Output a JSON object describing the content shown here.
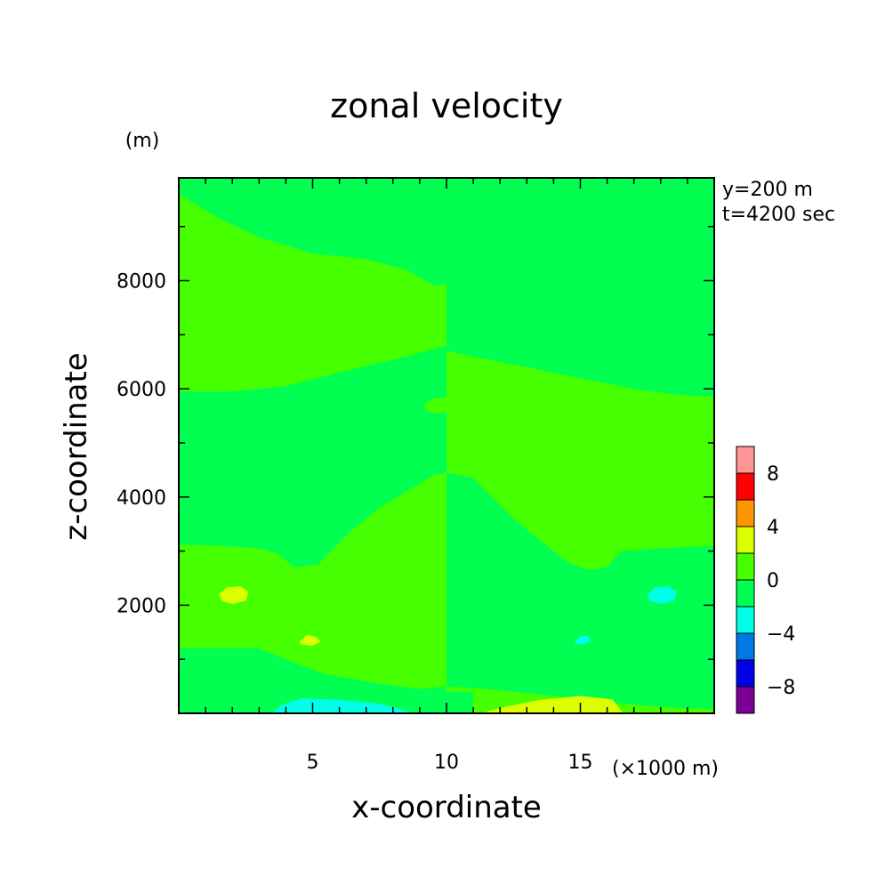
{
  "chart_data": {
    "type": "heatmap",
    "title": "zonal velocity",
    "xlabel": "x-coordinate",
    "ylabel": "z-coordinate",
    "x_unit": "(×1000 m)",
    "y_unit": "(m)",
    "annotations": [
      "y=200 m",
      "t=4200 sec"
    ],
    "xlim": [
      0,
      20
    ],
    "ylim": [
      0,
      9900
    ],
    "x_ticks": [
      5,
      10,
      15
    ],
    "y_ticks": [
      2000,
      4000,
      6000,
      8000
    ],
    "colorbar": {
      "levels": [
        -10,
        -8,
        -6,
        -4,
        -2,
        0,
        2,
        4,
        6,
        8,
        10
      ],
      "tick_labels": [
        -8,
        -4,
        0,
        4,
        8
      ],
      "colors": [
        "#7a0096",
        "#0000e6",
        "#0078e6",
        "#00ffe6",
        "#00ff50",
        "#46ff00",
        "#dcff00",
        "#ff9600",
        "#ff0000",
        "#ff9696"
      ]
    },
    "regions": [
      {
        "level": [
          0,
          2
        ],
        "points": [
          [
            0,
            9600
          ],
          [
            1.5,
            9150
          ],
          [
            3,
            8800
          ],
          [
            5,
            8500
          ],
          [
            7,
            8400
          ],
          [
            8.5,
            8200
          ],
          [
            9.6,
            7900
          ],
          [
            10,
            7950
          ],
          [
            10,
            6800
          ],
          [
            8.5,
            6600
          ],
          [
            6,
            6300
          ],
          [
            4,
            6050
          ],
          [
            2,
            5950
          ],
          [
            0,
            5950
          ]
        ]
      },
      {
        "level": [
          0,
          2
        ],
        "points": [
          [
            10,
            6700
          ],
          [
            11,
            6600
          ],
          [
            13,
            6400
          ],
          [
            15,
            6200
          ],
          [
            17,
            6000
          ],
          [
            18.5,
            5900
          ],
          [
            20,
            5850
          ],
          [
            20,
            3100
          ],
          [
            18,
            3050
          ],
          [
            16.5,
            3000
          ],
          [
            16,
            2700
          ],
          [
            15.3,
            2650
          ],
          [
            14.5,
            2800
          ],
          [
            13.5,
            3200
          ],
          [
            12.5,
            3600
          ],
          [
            11.5,
            4100
          ],
          [
            11,
            4350
          ],
          [
            10,
            4450
          ]
        ]
      },
      {
        "level": [
          0,
          2
        ],
        "points": [
          [
            9.2,
            5730
          ],
          [
            9.5,
            5820
          ],
          [
            10,
            5850
          ],
          [
            10,
            5560
          ],
          [
            9.5,
            5550
          ],
          [
            9.2,
            5600
          ]
        ]
      },
      {
        "level": [
          0,
          2
        ],
        "points": [
          [
            0,
            3120
          ],
          [
            1.5,
            3100
          ],
          [
            3,
            3050
          ],
          [
            3.7,
            2950
          ],
          [
            4.3,
            2700
          ],
          [
            5.2,
            2750
          ],
          [
            5.8,
            3050
          ],
          [
            6.5,
            3400
          ],
          [
            7.5,
            3800
          ],
          [
            8.5,
            4100
          ],
          [
            9.5,
            4400
          ],
          [
            10,
            4450
          ],
          [
            10,
            500
          ],
          [
            9,
            450
          ],
          [
            7.5,
            550
          ],
          [
            5.5,
            720
          ],
          [
            4,
            1000
          ],
          [
            3,
            1200
          ],
          [
            1,
            1200
          ],
          [
            0,
            1200
          ]
        ]
      },
      {
        "level": [
          0,
          2
        ],
        "points": [
          [
            10,
            9900
          ],
          [
            11,
            9900
          ],
          [
            10,
            9900
          ]
        ]
      },
      {
        "level": [
          0,
          2
        ],
        "points": [
          [
            10,
            500
          ],
          [
            11.5,
            450
          ],
          [
            13.5,
            350
          ],
          [
            16,
            200
          ],
          [
            18,
            120
          ],
          [
            20,
            80
          ],
          [
            20,
            0
          ],
          [
            10,
            0
          ]
        ]
      },
      {
        "level": [
          -2,
          0
        ],
        "points": [
          [
            10,
            0
          ],
          [
            11,
            0
          ],
          [
            11,
            400
          ],
          [
            10,
            400
          ]
        ]
      },
      {
        "level": [
          2,
          4
        ],
        "points": [
          [
            1.5,
            2200
          ],
          [
            1.8,
            2330
          ],
          [
            2.3,
            2350
          ],
          [
            2.6,
            2250
          ],
          [
            2.5,
            2080
          ],
          [
            2,
            2020
          ],
          [
            1.6,
            2080
          ]
        ]
      },
      {
        "level": [
          2,
          4
        ],
        "points": [
          [
            4.5,
            1320
          ],
          [
            4.8,
            1450
          ],
          [
            5.1,
            1420
          ],
          [
            5.3,
            1330
          ],
          [
            5,
            1250
          ],
          [
            4.6,
            1270
          ]
        ]
      },
      {
        "level": [
          2,
          4
        ],
        "points": [
          [
            11.3,
            0
          ],
          [
            12,
            100
          ],
          [
            13.5,
            250
          ],
          [
            15,
            320
          ],
          [
            16.2,
            260
          ],
          [
            16.6,
            0
          ]
        ]
      },
      {
        "level": [
          -4,
          -2
        ],
        "points": [
          [
            17.5,
            2200
          ],
          [
            17.8,
            2330
          ],
          [
            18.3,
            2350
          ],
          [
            18.6,
            2250
          ],
          [
            18.5,
            2080
          ],
          [
            18,
            2020
          ],
          [
            17.6,
            2080
          ]
        ]
      },
      {
        "level": [
          -4,
          -2
        ],
        "points": [
          [
            14.8,
            1330
          ],
          [
            15,
            1430
          ],
          [
            15.3,
            1430
          ],
          [
            15.4,
            1330
          ],
          [
            15.1,
            1270
          ],
          [
            14.8,
            1290
          ]
        ]
      },
      {
        "level": [
          -4,
          -2
        ],
        "points": [
          [
            3.5,
            0
          ],
          [
            3.8,
            150
          ],
          [
            4.6,
            280
          ],
          [
            6,
            250
          ],
          [
            7.5,
            180
          ],
          [
            8.4,
            60
          ],
          [
            8.8,
            0
          ]
        ]
      }
    ]
  }
}
